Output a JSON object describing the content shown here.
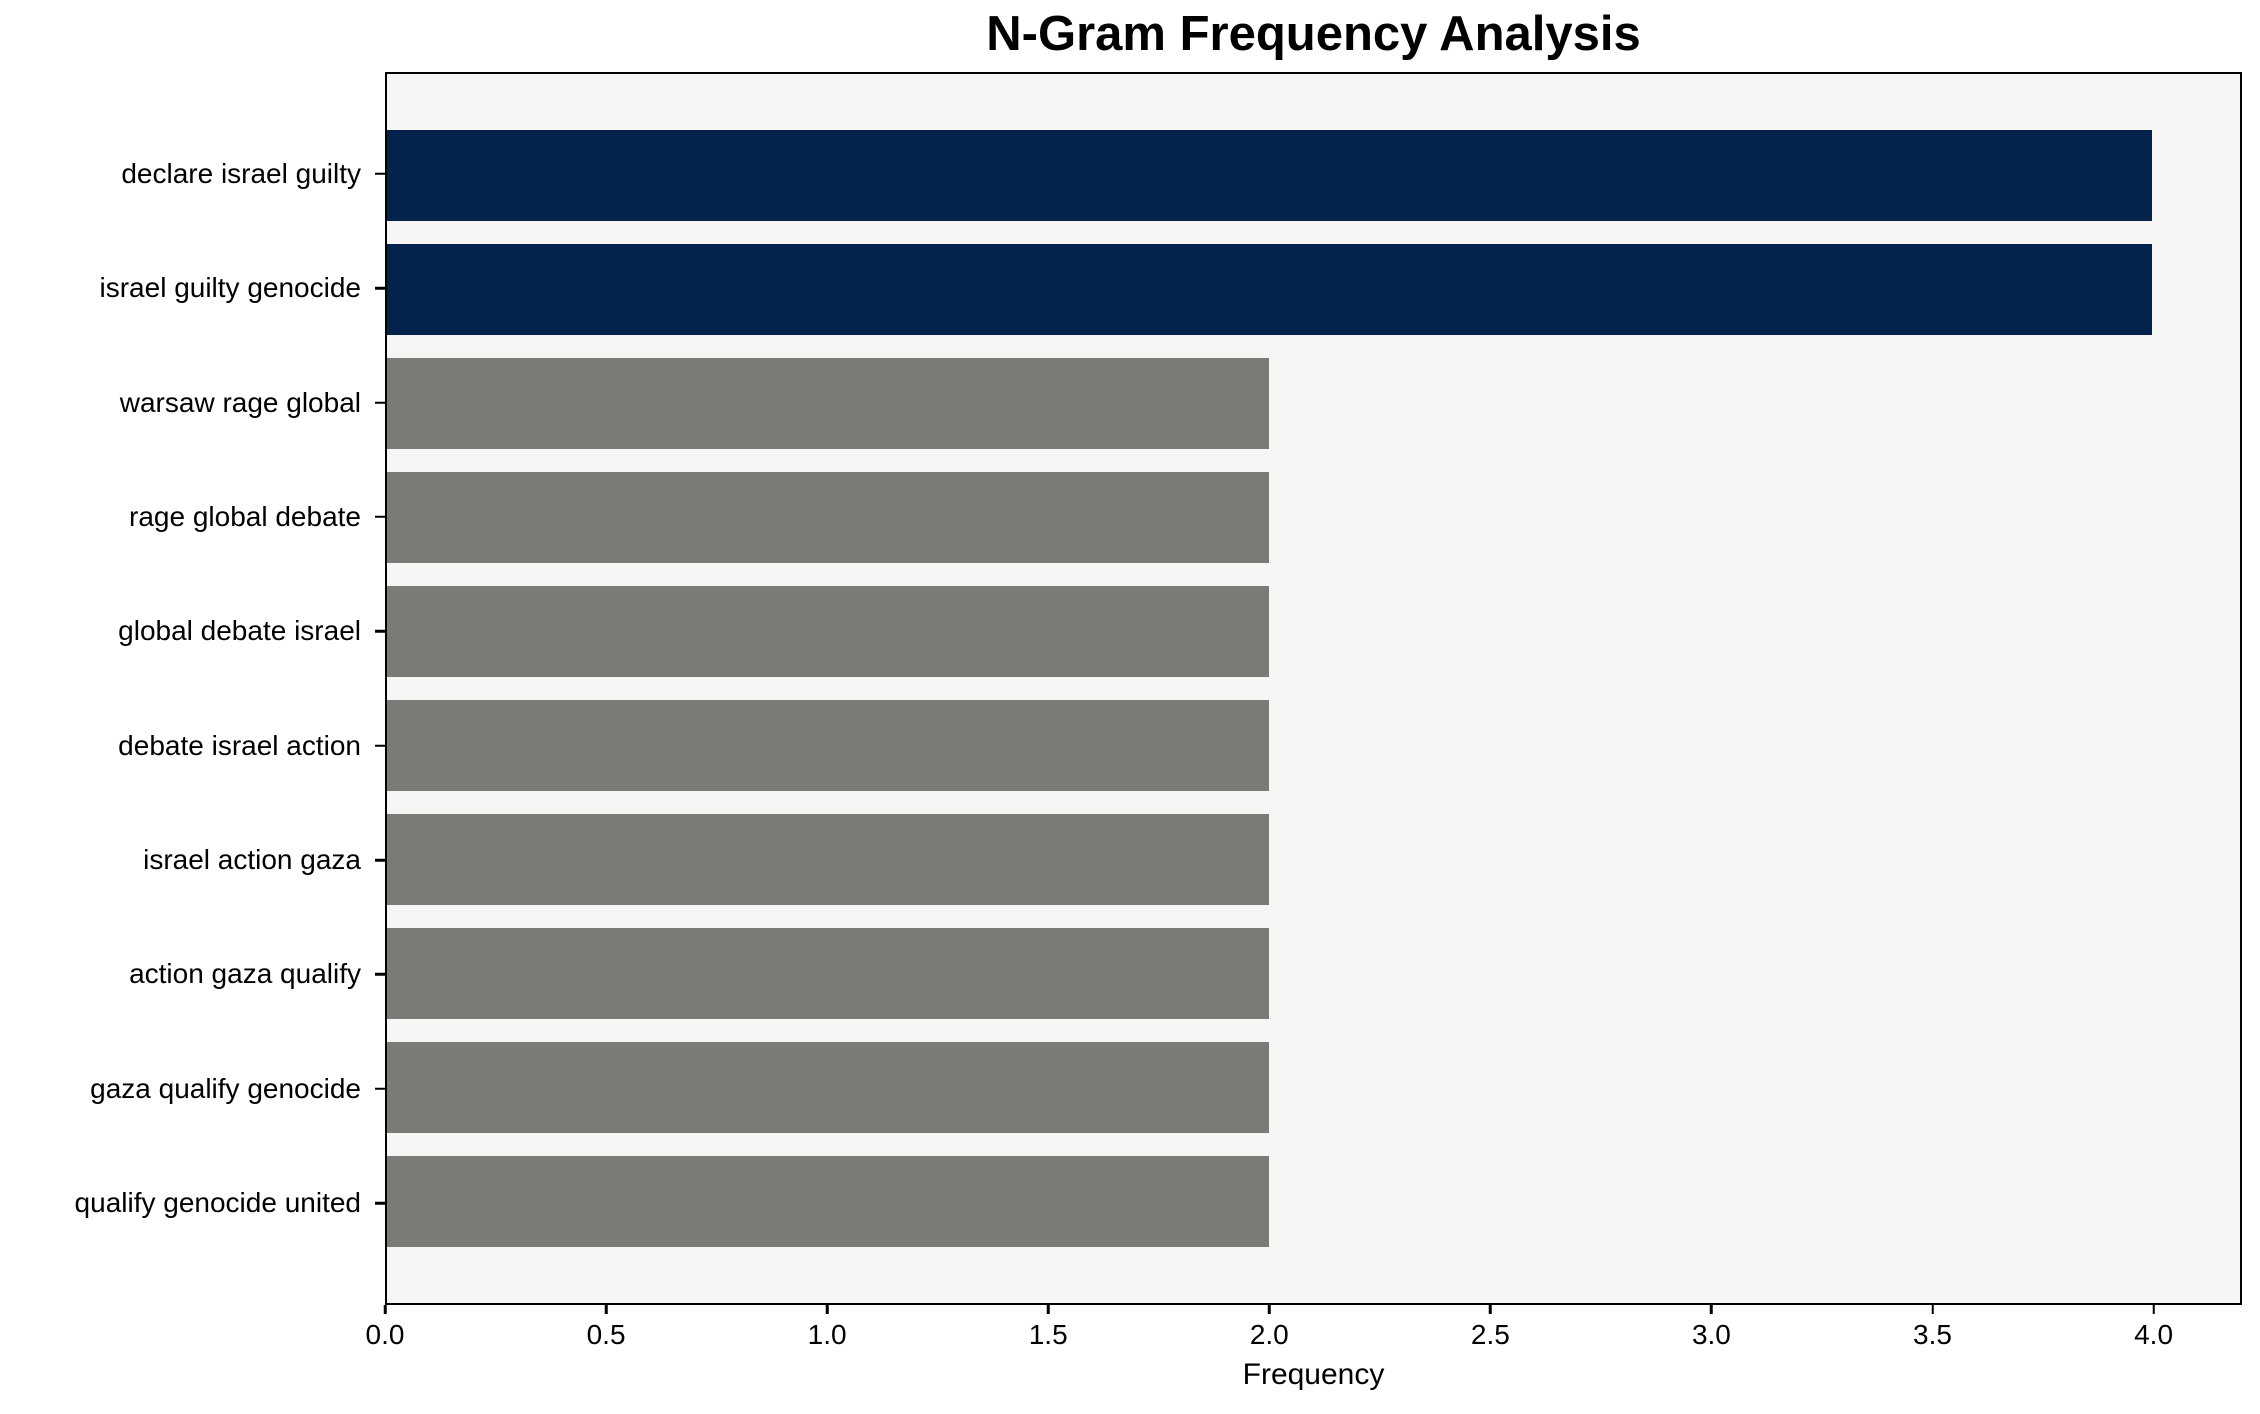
{
  "chart_data": {
    "type": "bar",
    "orientation": "horizontal",
    "title": "N-Gram Frequency Analysis",
    "xlabel": "Frequency",
    "categories": [
      "declare israel guilty",
      "israel guilty genocide",
      "warsaw rage global",
      "rage global debate",
      "global debate israel",
      "debate israel action",
      "israel action gaza",
      "action gaza qualify",
      "gaza qualify genocide",
      "qualify genocide united"
    ],
    "values": [
      4,
      4,
      2,
      2,
      2,
      2,
      2,
      2,
      2,
      2
    ],
    "bar_colors": [
      "#03234C",
      "#03234C",
      "#7B7A76",
      "#7B7A76",
      "#7B7A76",
      "#7B7A76",
      "#7B7A76",
      "#7B7A76",
      "#7B7A76",
      "#7B7A76"
    ],
    "xlim": [
      0,
      4.2
    ],
    "x_ticks": [
      "0.0",
      "0.5",
      "1.0",
      "1.5",
      "2.0",
      "2.5",
      "3.0",
      "3.5",
      "4.0"
    ],
    "x_tick_values": [
      0,
      0.5,
      1,
      1.5,
      2,
      2.5,
      3,
      3.5,
      4
    ],
    "bar_height_frac": 0.8,
    "grid": false,
    "legend_position": "none",
    "colors": {
      "highlight": "#03234C",
      "default": "#7B7A76",
      "plot_background": "#F7F6F4",
      "figure_background": "#FFFFFF",
      "axis": "#000000",
      "text": "#000000"
    }
  }
}
